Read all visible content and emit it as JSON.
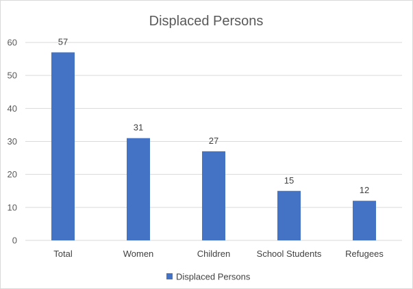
{
  "chart_data": {
    "type": "bar",
    "title": "Displaced Persons",
    "categories": [
      "Total",
      "Women",
      "Children",
      "School Students",
      "Refugees"
    ],
    "series": [
      {
        "name": "Displaced Persons",
        "values": [
          57,
          31,
          27,
          15,
          12
        ],
        "color": "#4472c4"
      }
    ],
    "ylim": [
      0,
      60
    ],
    "yticks": [
      0,
      10,
      20,
      30,
      40,
      50,
      60
    ],
    "grid": true,
    "legend_position": "bottom",
    "data_labels": true
  }
}
